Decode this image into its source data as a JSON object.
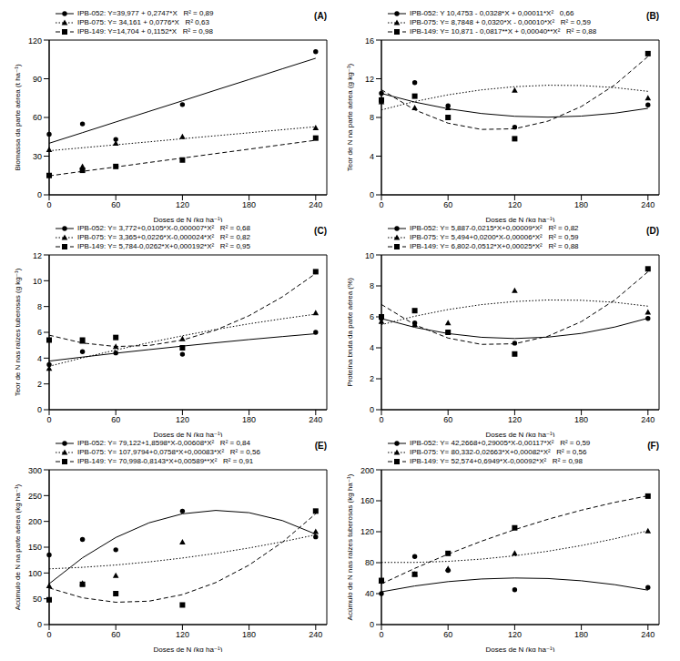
{
  "chart_data": [
    {
      "type": "scatter",
      "title": "(A)",
      "x_label": "Doses de N (kg ha⁻¹)",
      "y_label": "Biomassa da parte aérea (t ha⁻¹)",
      "xlim": [
        0,
        250
      ],
      "xticks": [
        0,
        60,
        120,
        180,
        240
      ],
      "ylim": [
        0,
        120
      ],
      "yticks": [
        0,
        30,
        60,
        90,
        120
      ],
      "x": [
        0,
        30,
        60,
        120,
        240
      ],
      "fit_x": [
        0,
        30,
        60,
        90,
        120,
        150,
        180,
        210,
        240
      ],
      "series": [
        {
          "name": "IPB-052: Y=39,977 + 0,2747*X   R² = 0,89",
          "color": "#000000",
          "marker": "circle",
          "line_style": "solid",
          "values": [
            47,
            55,
            43,
            70,
            111
          ],
          "fit": [
            40.0,
            48.2,
            56.5,
            64.7,
            72.9,
            81.2,
            89.4,
            97.7,
            105.9
          ]
        },
        {
          "name": "IPB-075: Y= 34,161 + 0,0776*X   R² 0,63",
          "color": "#000000",
          "marker": "triangle",
          "line_style": "dotted",
          "values": [
            35,
            22,
            40,
            45,
            52
          ],
          "fit": [
            34.2,
            36.5,
            38.8,
            41.1,
            43.5,
            45.8,
            48.1,
            50.5,
            52.8
          ]
        },
        {
          "name": "IPB-149: Y=14,704 + 0,1152*X   R² = 0,98",
          "color": "#000000",
          "marker": "square",
          "line_style": "dashed",
          "values": [
            15,
            19,
            22,
            27,
            44
          ],
          "fit": [
            14.7,
            18.2,
            21.6,
            25.1,
            28.5,
            32.0,
            35.4,
            38.9,
            42.3
          ]
        }
      ]
    },
    {
      "type": "scatter",
      "title": "(B)",
      "x_label": "Doses de N (kg ha⁻¹)",
      "y_label": "Teor de N na parte aérea (g kg⁻¹)",
      "xlim": [
        0,
        250
      ],
      "xticks": [
        0,
        60,
        120,
        180,
        240
      ],
      "ylim": [
        0,
        16
      ],
      "yticks": [
        0,
        4,
        8,
        12,
        16
      ],
      "x": [
        0,
        30,
        60,
        120,
        240
      ],
      "fit_x": [
        0,
        30,
        60,
        90,
        120,
        150,
        180,
        210,
        240
      ],
      "series": [
        {
          "name": "IPB-052: Y 10,4753 - 0,0328*X + 0,00011*X²   0,66",
          "color": "#000000",
          "marker": "circle",
          "line_style": "solid",
          "values": [
            10.5,
            11.6,
            9.2,
            7.0,
            9.3
          ],
          "fit": [
            10.48,
            9.59,
            8.9,
            8.41,
            8.12,
            8.03,
            8.14,
            8.44,
            8.94
          ]
        },
        {
          "name": "IPB-075: Y= 8,7848 + 0,0320*X - 0,00010*X²   R² = 0,59",
          "color": "#000000",
          "marker": "triangle",
          "line_style": "dotted",
          "values": [
            9.6,
            9.0,
            9.0,
            10.8,
            10.0
          ],
          "fit": [
            8.78,
            9.65,
            10.34,
            10.85,
            11.18,
            11.33,
            11.3,
            11.09,
            10.7
          ]
        },
        {
          "name": "IPB-149: Y= 10,871 - 0,0817**X + 0,00040**X²   R² = 0,88",
          "color": "#000000",
          "marker": "square",
          "line_style": "dashed",
          "values": [
            9.8,
            10.2,
            8.0,
            5.8,
            14.6
          ],
          "fit": [
            10.87,
            8.78,
            7.41,
            6.76,
            6.83,
            7.62,
            9.13,
            11.35,
            14.3
          ]
        }
      ]
    },
    {
      "type": "scatter",
      "title": "(C)",
      "x_label": "Doses de N (kg ha⁻¹)",
      "y_label": "Teor de N nas raízes tuberosas (g kg⁻¹)",
      "xlim": [
        0,
        250
      ],
      "xticks": [
        0,
        60,
        120,
        180,
        240
      ],
      "ylim": [
        0,
        12
      ],
      "yticks": [
        0,
        2,
        4,
        6,
        8,
        10,
        12
      ],
      "x": [
        0,
        30,
        60,
        120,
        240
      ],
      "fit_x": [
        0,
        30,
        60,
        90,
        120,
        150,
        180,
        210,
        240
      ],
      "series": [
        {
          "name": "IPB-052: Y= 3,772+0,0105*X-0,000007*X²   R² = 0,68",
          "color": "#000000",
          "marker": "circle",
          "line_style": "solid",
          "values": [
            3.5,
            4.5,
            4.4,
            4.3,
            6.0
          ],
          "fit": [
            3.77,
            4.08,
            4.38,
            4.66,
            4.93,
            5.19,
            5.44,
            5.67,
            5.89
          ]
        },
        {
          "name": "IPB-075: Y= 3,365+0,0226*X-0,000024*X²   R² = 0,82",
          "color": "#000000",
          "marker": "triangle",
          "line_style": "dotted",
          "values": [
            3.2,
            5.3,
            4.9,
            5.5,
            7.5
          ],
          "fit": [
            3.37,
            4.02,
            4.63,
            5.2,
            5.73,
            6.22,
            6.66,
            7.05,
            7.41
          ]
        },
        {
          "name": "IPB-149: Y= 5,784-0,0262*X+0,000192*X²   R² = 0,95",
          "color": "#000000",
          "marker": "square",
          "line_style": "dashed",
          "values": [
            5.4,
            5.4,
            5.6,
            4.8,
            10.7
          ],
          "fit": [
            5.78,
            5.17,
            4.9,
            4.98,
            5.4,
            6.17,
            7.29,
            8.75,
            10.56
          ]
        }
      ]
    },
    {
      "type": "scatter",
      "title": "(D)",
      "x_label": "Doses de N (kg ha⁻¹)",
      "y_label": "Proteína bruta da parte aérea (%)",
      "xlim": [
        0,
        250
      ],
      "xticks": [
        0,
        60,
        120,
        180,
        240
      ],
      "ylim": [
        0,
        10
      ],
      "yticks": [
        0,
        2,
        4,
        6,
        8,
        10
      ],
      "x": [
        0,
        30,
        60,
        120,
        240
      ],
      "fit_x": [
        0,
        30,
        60,
        90,
        120,
        150,
        180,
        210,
        240
      ],
      "series": [
        {
          "name": "IPB-052: Y= 5,887-0,0215*X+0,00009*X²   R² = 0,82",
          "color": "#000000",
          "marker": "circle",
          "line_style": "solid",
          "values": [
            5.9,
            5.6,
            5.0,
            4.3,
            5.9
          ],
          "fit": [
            5.89,
            5.32,
            4.92,
            4.68,
            4.6,
            4.69,
            4.93,
            5.34,
            5.91
          ]
        },
        {
          "name": "IPB-075: Y= 5,494+0,0200*X-0,00006*X²   R² = 0,59",
          "color": "#000000",
          "marker": "triangle",
          "line_style": "dotted",
          "values": [
            5.7,
            5.5,
            5.6,
            7.7,
            6.3
          ],
          "fit": [
            5.49,
            6.04,
            6.47,
            6.79,
            6.99,
            7.09,
            7.07,
            6.94,
            6.69
          ]
        },
        {
          "name": "IPB-149: Y= 6,802-0,0512*X+0,00025*X²   R² = 0,88",
          "color": "#000000",
          "marker": "square",
          "line_style": "dashed",
          "values": [
            6.0,
            6.4,
            5.0,
            3.6,
            9.1
          ],
          "fit": [
            6.8,
            5.49,
            4.63,
            4.22,
            4.26,
            4.75,
            5.69,
            7.08,
            8.91
          ]
        }
      ]
    },
    {
      "type": "scatter",
      "title": "(E)",
      "x_label": "Doses de N (kg ha⁻¹)",
      "y_label": "Acúmulo de N na parte aérea (kg ha⁻¹)",
      "xlim": [
        0,
        250
      ],
      "xticks": [
        0,
        60,
        120,
        180,
        240
      ],
      "ylim": [
        0,
        300
      ],
      "yticks": [
        0,
        50,
        100,
        150,
        200,
        250,
        300
      ],
      "x": [
        0,
        30,
        60,
        120,
        240
      ],
      "fit_x": [
        0,
        30,
        60,
        90,
        120,
        150,
        180,
        210,
        240
      ],
      "series": [
        {
          "name": "IPB-052: Y= 79,122+1,8598*X-0,00608*X²   R² = 0,84",
          "color": "#000000",
          "marker": "circle",
          "line_style": "solid",
          "values": [
            135,
            165,
            145,
            220,
            170
          ],
          "fit": [
            79.1,
            129.4,
            168.8,
            197.3,
            214.7,
            221.3,
            216.9,
            201.6,
            175.3
          ]
        },
        {
          "name": "IPB-075: Y= 107,9794+0,0758*X+0,00083*X²   R² = 0,56",
          "color": "#000000",
          "marker": "triangle",
          "line_style": "dotted",
          "values": [
            75,
            80,
            95,
            160,
            180
          ],
          "fit": [
            108.0,
            111.0,
            115.5,
            121.5,
            129.0,
            138.0,
            148.5,
            160.5,
            174.0
          ]
        },
        {
          "name": "IPB-149: Y= 70,998-0,8143*X+0,00589**X²   R² = 0,91",
          "color": "#000000",
          "marker": "square",
          "line_style": "dashed",
          "values": [
            48,
            78,
            60,
            38,
            220
          ],
          "fit": [
            71.0,
            51.9,
            43.3,
            45.4,
            58.1,
            81.4,
            115.3,
            159.7,
            214.8
          ]
        }
      ]
    },
    {
      "type": "scatter",
      "title": "(F)",
      "x_label": "Doses de N (kg ha⁻¹)",
      "y_label": "Acúmulo de N nas raízes tuberosas (kg ha⁻¹)",
      "xlim": [
        0,
        250
      ],
      "xticks": [
        0,
        60,
        120,
        180,
        240
      ],
      "ylim": [
        0,
        200
      ],
      "yticks": [
        0,
        40,
        80,
        120,
        160,
        200
      ],
      "x": [
        0,
        30,
        60,
        120,
        240
      ],
      "fit_x": [
        0,
        30,
        60,
        90,
        120,
        150,
        180,
        210,
        240
      ],
      "series": [
        {
          "name": "IPB-052: Y= 42,2668+0,29005*X-0,00117*X²   R² = 0,59",
          "color": "#000000",
          "marker": "circle",
          "line_style": "solid",
          "values": [
            40,
            88,
            70,
            45,
            48
          ],
          "fit": [
            42.3,
            49.9,
            55.5,
            58.9,
            60.2,
            59.5,
            56.6,
            51.6,
            44.5
          ]
        },
        {
          "name": "IPB-075: Y= 80,332-0,02663*X+0,00082*X²   R² = 0,56",
          "color": "#000000",
          "marker": "triangle",
          "line_style": "dotted",
          "values": [
            56,
            65,
            72,
            92,
            121
          ],
          "fit": [
            80.3,
            80.3,
            81.7,
            84.6,
            88.9,
            94.8,
            102.1,
            110.9,
            121.2
          ]
        },
        {
          "name": "IPB-149: Y= 52,574+0,6949*X-0,00092*X²   R² = 0,98",
          "color": "#000000",
          "marker": "square",
          "line_style": "dashed",
          "values": [
            57,
            65,
            92,
            125,
            166
          ],
          "fit": [
            52.6,
            72.6,
            91.0,
            107.7,
            122.7,
            136.1,
            147.8,
            157.9,
            166.4
          ]
        }
      ]
    }
  ]
}
